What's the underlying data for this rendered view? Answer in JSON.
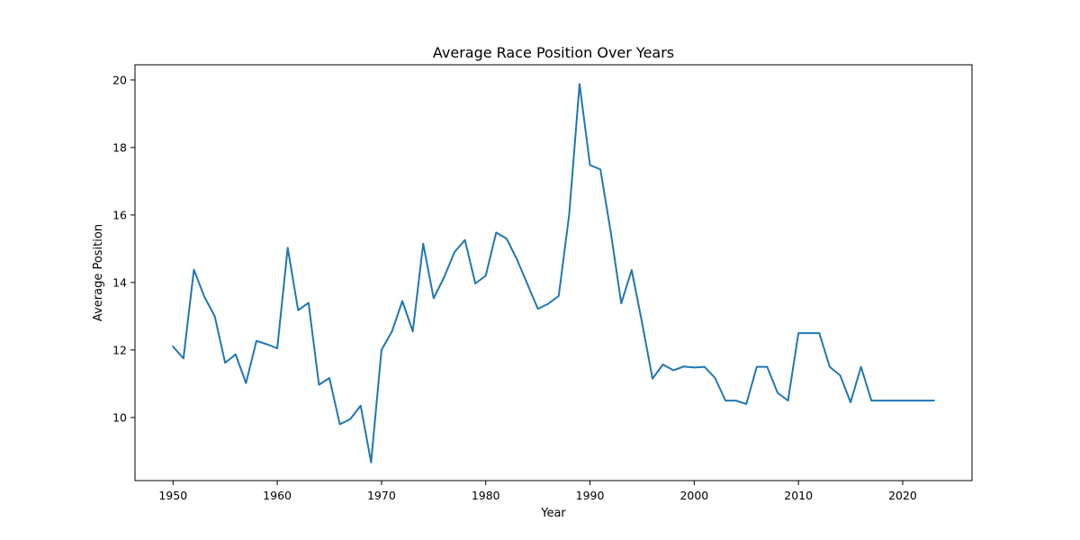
{
  "chart_data": {
    "type": "line",
    "title": "Average Race Position Over Years",
    "xlabel": "Year",
    "ylabel": "Average Position",
    "xlim": [
      1946.35,
      2026.65
    ],
    "ylim": [
      8.13,
      20.45
    ],
    "grid": false,
    "line_color": "#1f77b4",
    "x_ticks": [
      1950,
      1960,
      1970,
      1980,
      1990,
      2000,
      2010,
      2020
    ],
    "y_ticks": [
      10,
      12,
      14,
      16,
      18,
      20
    ],
    "series": [
      {
        "name": "Average Position",
        "x": [
          1950,
          1951,
          1952,
          1953,
          1954,
          1955,
          1956,
          1957,
          1958,
          1959,
          1960,
          1961,
          1962,
          1963,
          1964,
          1965,
          1966,
          1967,
          1968,
          1969,
          1970,
          1971,
          1972,
          1973,
          1974,
          1975,
          1976,
          1977,
          1978,
          1979,
          1980,
          1981,
          1982,
          1983,
          1984,
          1985,
          1986,
          1987,
          1988,
          1989,
          1990,
          1991,
          1992,
          1993,
          1994,
          1995,
          1996,
          1997,
          1998,
          1999,
          2000,
          2001,
          2002,
          2003,
          2004,
          2005,
          2006,
          2007,
          2008,
          2009,
          2010,
          2011,
          2012,
          2013,
          2014,
          2015,
          2016,
          2017,
          2018,
          2019,
          2020,
          2021,
          2022,
          2023
        ],
        "y": [
          12.1,
          11.75,
          14.38,
          13.58,
          13.0,
          11.62,
          11.87,
          11.02,
          12.27,
          12.17,
          12.05,
          15.03,
          13.18,
          13.4,
          10.97,
          11.17,
          9.8,
          9.95,
          10.35,
          8.67,
          12.0,
          12.55,
          13.45,
          12.55,
          15.15,
          13.53,
          14.15,
          14.9,
          15.26,
          13.97,
          14.2,
          15.48,
          15.3,
          14.68,
          13.95,
          13.22,
          13.37,
          13.6,
          16.0,
          19.88,
          17.48,
          17.35,
          15.48,
          13.38,
          14.37,
          12.8,
          11.15,
          11.57,
          11.4,
          11.51,
          11.48,
          11.5,
          11.17,
          10.5,
          10.5,
          10.4,
          11.5,
          11.5,
          10.73,
          10.5,
          12.5,
          12.5,
          12.5,
          11.5,
          11.25,
          10.45,
          11.5,
          10.5,
          10.5,
          10.5,
          10.5,
          10.5,
          10.5,
          10.5
        ]
      }
    ]
  }
}
